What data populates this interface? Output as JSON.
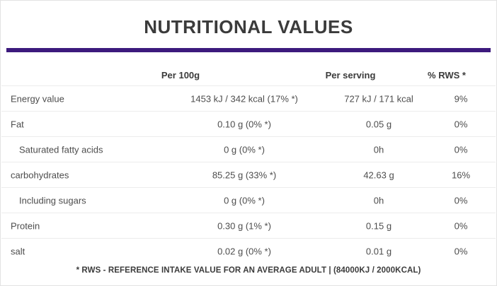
{
  "page": {
    "title": "NUTRITIONAL VALUES",
    "footer_note": "* RWS - REFERENCE INTAKE VALUE FOR AN AVERAGE ADULT | (84000KJ / 2000KCAL)"
  },
  "colors": {
    "accent_purple": "#3d1a7d",
    "heading_text": "#3b3b3b",
    "body_text": "#4d4d4d",
    "row_divider": "#ececec",
    "card_border": "#e3e3e3",
    "background": "#ffffff"
  },
  "table": {
    "headers": {
      "per100g": "Per 100g",
      "per_serving": "Per serving",
      "rws": "% RWS *"
    },
    "rows": [
      {
        "label": "Energy value",
        "per100g": "1453 kJ / 342 kcal (17% *)",
        "per_serving": "727 kJ / 171 kcal",
        "rws": "9%"
      },
      {
        "label": "Fat",
        "per100g": "0.10 g (0% *)",
        "per_serving": "0.05 g",
        "rws": "0%"
      },
      {
        "label": "Saturated fatty acids",
        "per100g": "0 g (0% *)",
        "per_serving": "0h",
        "rws": "0%"
      },
      {
        "label": "carbohydrates",
        "per100g": "85.25 g (33% *)",
        "per_serving": "42.63 g",
        "rws": "16%"
      },
      {
        "label": "Including sugars",
        "per100g": "0 g (0% *)",
        "per_serving": "0h",
        "rws": "0%"
      },
      {
        "label": "Protein",
        "per100g": "0.30 g (1% *)",
        "per_serving": "0.15 g",
        "rws": "0%"
      },
      {
        "label": "salt",
        "per100g": "0.02 g (0% *)",
        "per_serving": "0.01 g",
        "rws": "0%"
      }
    ]
  }
}
